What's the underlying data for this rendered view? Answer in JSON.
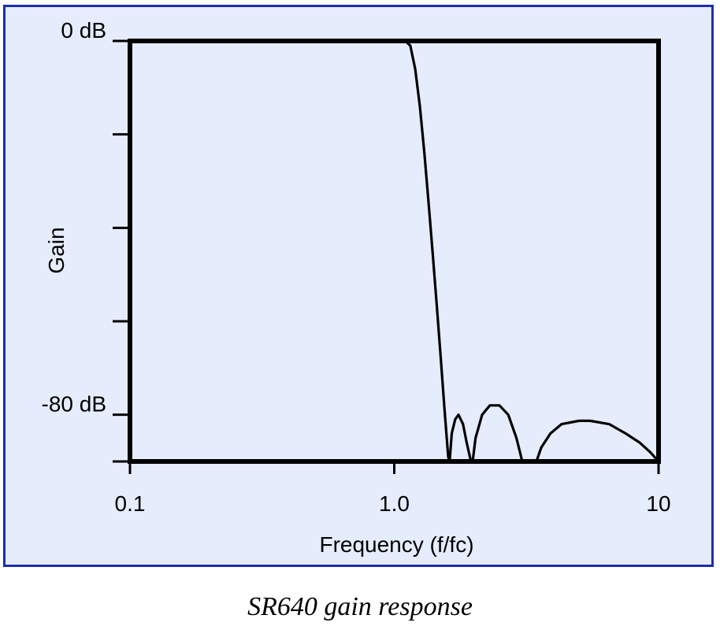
{
  "caption": "SR640 gain response",
  "colors": {
    "panel_background": "#e5ecfb",
    "panel_border": "#1e2ea8",
    "curve": "#000000"
  },
  "chart_data": {
    "type": "line",
    "title": "",
    "xlabel": "Frequency (f/fc)",
    "ylabel": "Gain",
    "x_scale": "log",
    "xlim": [
      0.1,
      10
    ],
    "ylim": [
      -90,
      0
    ],
    "x_ticks": [
      {
        "value": 0.1,
        "label": "0.1"
      },
      {
        "value": 1.0,
        "label": "1.0"
      },
      {
        "value": 10,
        "label": "10"
      }
    ],
    "y_ticks": [
      {
        "value": 0,
        "label": "0 dB"
      },
      {
        "value": -20,
        "label": ""
      },
      {
        "value": -40,
        "label": ""
      },
      {
        "value": -60,
        "label": ""
      },
      {
        "value": -80,
        "label": "-80 dB"
      },
      {
        "value": -90,
        "label": ""
      }
    ],
    "grid": false,
    "series": [
      {
        "x": [
          0.1,
          1.0,
          1.1,
          1.15,
          1.2,
          1.25,
          1.3,
          1.35,
          1.4,
          1.45,
          1.5,
          1.55,
          1.6,
          1.62,
          1.65,
          1.7,
          1.75,
          1.82,
          1.88,
          1.95,
          1.98,
          2.03,
          2.15,
          2.3,
          2.5,
          2.7,
          2.9,
          3.05,
          3.45,
          3.6,
          3.9,
          4.3,
          5.0,
          5.5,
          6.5,
          7.5,
          8.5,
          9.3,
          10
        ],
        "y": [
          0,
          0,
          0,
          -1,
          -6,
          -14,
          -24,
          -35,
          -46,
          -57,
          -68,
          -79,
          -89,
          -90,
          -84,
          -81,
          -80,
          -82,
          -86,
          -90,
          -90,
          -85,
          -80,
          -78,
          -78,
          -80,
          -85,
          -90,
          -90,
          -87,
          -84,
          -82,
          -81.3,
          -81.3,
          -82,
          -84,
          -86,
          -88,
          -90
        ]
      }
    ]
  }
}
